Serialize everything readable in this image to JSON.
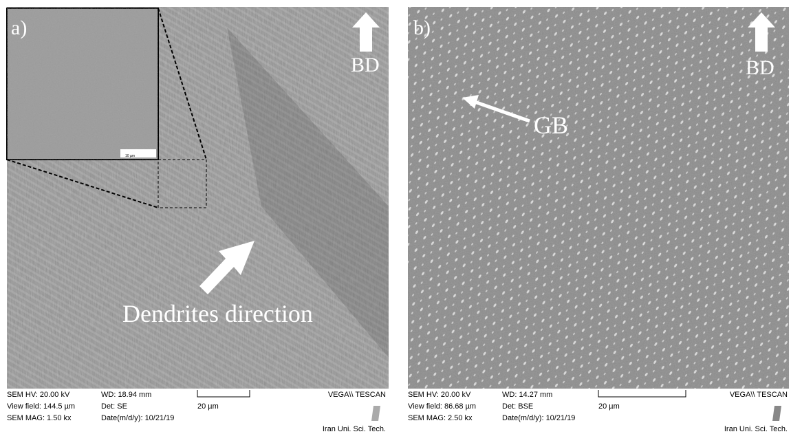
{
  "panels": [
    {
      "label": "a)",
      "direction": "BD",
      "annotation": "Dendrites direction",
      "inset_scale": "10 µm",
      "info": {
        "hv": "SEM HV: 20.00 kV",
        "view_field": "View field: 144.5 µm",
        "mag": "SEM MAG: 1.50 kx",
        "wd": "WD: 18.94 mm",
        "det": "Det: SE",
        "date": "Date(m/d/y): 10/21/19",
        "scale": "20 µm",
        "brand": "VEGA\\\\ TESCAN",
        "institution": "Iran Uni. Sci. Tech."
      }
    },
    {
      "label": "b)",
      "direction": "BD",
      "annotation": "GB",
      "info": {
        "hv": "SEM HV: 20.00 kV",
        "view_field": "View field: 86.68 µm",
        "mag": "SEM MAG: 2.50 kx",
        "wd": "WD: 14.27 mm",
        "det": "Det: BSE",
        "date": "Date(m/d/y): 10/21/19",
        "scale": "20 µm",
        "brand": "VEGA\\\\ TESCAN",
        "institution": "Iran Uni. Sci. Tech."
      }
    }
  ]
}
